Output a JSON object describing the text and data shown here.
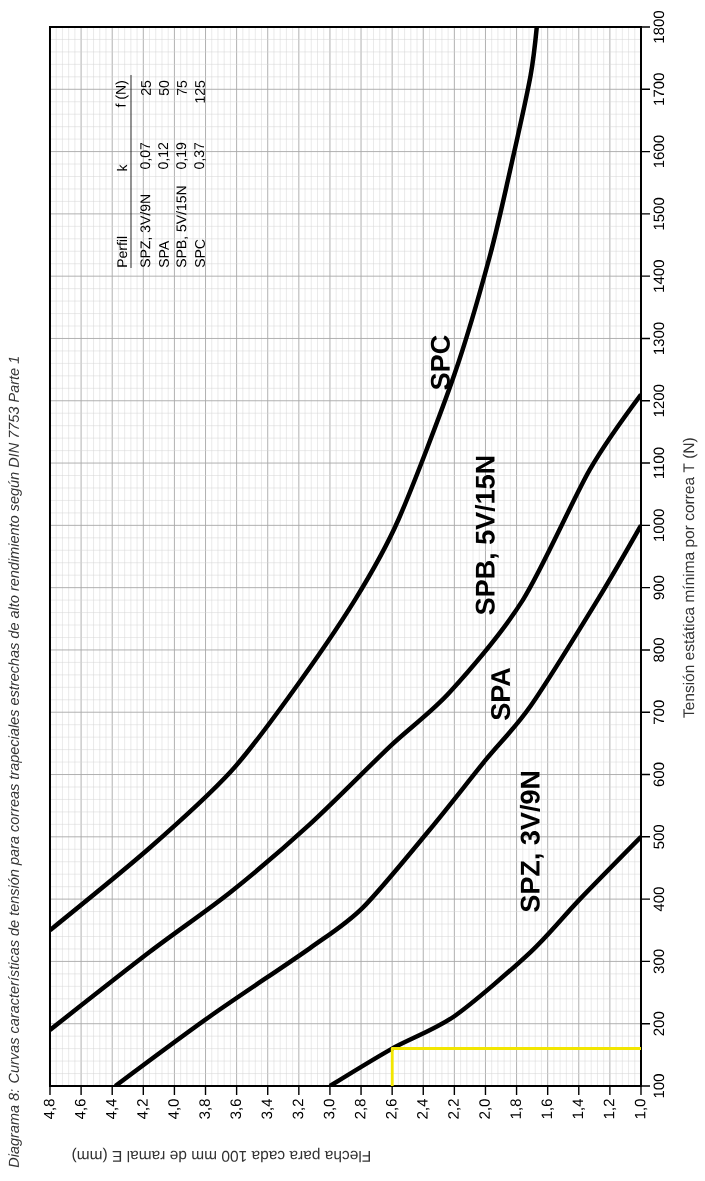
{
  "chart_data": {
    "type": "line",
    "title": "Diagrama 8: Curvas características de tensión para correas trapeciales estrechas de alto rendimiento según DIN 7753 Parte 1",
    "xlabel": "Flecha para cada 100 mm de ramal E (mm)",
    "ylabel": "Tensión estática mínima por correa T (N)",
    "xlim": [
      4.8,
      1.0
    ],
    "ylim": [
      100,
      1800
    ],
    "xticks": [
      {
        "value": 4.8,
        "label": "4,8"
      },
      {
        "value": 4.6,
        "label": "4,6"
      },
      {
        "value": 4.4,
        "label": "4,4"
      },
      {
        "value": 4.2,
        "label": "4,2"
      },
      {
        "value": 4.0,
        "label": "4,0"
      },
      {
        "value": 3.8,
        "label": "3,8"
      },
      {
        "value": 3.6,
        "label": "3,6"
      },
      {
        "value": 3.4,
        "label": "3,4"
      },
      {
        "value": 3.2,
        "label": "3,2"
      },
      {
        "value": 3.0,
        "label": "3,0"
      },
      {
        "value": 2.8,
        "label": "2,8"
      },
      {
        "value": 2.6,
        "label": "2,6"
      },
      {
        "value": 2.4,
        "label": "2,4"
      },
      {
        "value": 2.2,
        "label": "2,2"
      },
      {
        "value": 2.0,
        "label": "2,0"
      },
      {
        "value": 1.8,
        "label": "1,8"
      },
      {
        "value": 1.6,
        "label": "1,6"
      },
      {
        "value": 1.4,
        "label": "1,4"
      },
      {
        "value": 1.2,
        "label": "1,2"
      },
      {
        "value": 1.0,
        "label": "1,0"
      }
    ],
    "yticks": [
      100,
      200,
      300,
      400,
      500,
      600,
      700,
      800,
      900,
      1000,
      1100,
      1200,
      1300,
      1400,
      1500,
      1600,
      1700,
      1800
    ],
    "grid": true,
    "marker": "none",
    "line_style": "solid",
    "series": [
      {
        "name": "SPZ, 3V/9N",
        "color": "#000000",
        "x": [
          3.0,
          2.6,
          2.2,
          1.71,
          1.4,
          1.0
        ],
        "values": [
          100,
          160,
          212,
          315,
          398,
          500
        ]
      },
      {
        "name": "SPA",
        "color": "#000000",
        "x": [
          4.38,
          3.77,
          3.13,
          2.79,
          2.36,
          2.0,
          1.71,
          1.28,
          1.0
        ],
        "values": [
          100,
          212,
          321,
          386,
          511,
          623,
          710,
          880,
          1000
        ]
      },
      {
        "name": "SPB, 5V/15N",
        "color": "#000000",
        "x": [
          4.8,
          4.16,
          3.64,
          3.13,
          2.61,
          2.23,
          1.76,
          1.33,
          1.0
        ],
        "values": [
          190,
          315,
          411,
          520,
          646,
          732,
          880,
          1089,
          1210
        ]
      },
      {
        "name": "SPC",
        "color": "#000000",
        "x": [
          4.8,
          4.16,
          3.64,
          3.26,
          2.84,
          2.56,
          2.2,
          1.97,
          1.82,
          1.71,
          1.67
        ],
        "values": [
          350,
          482,
          604,
          726,
          880,
          1009,
          1242,
          1434,
          1594,
          1722,
          1800
        ]
      },
      {
        "type": "step",
        "color": "#f2e600",
        "x": [
          2.6,
          2.6,
          1.0
        ],
        "values": [
          100,
          160,
          160
        ]
      }
    ],
    "annotations": [
      "Perfil",
      "k",
      "f (N)",
      "SPZ, 3V/9N",
      "0,07",
      "25",
      "SPA",
      "0,12",
      "50",
      "SPB, 5V/15N",
      "0,19",
      "75",
      "SPC",
      "0,37",
      "125"
    ]
  }
}
